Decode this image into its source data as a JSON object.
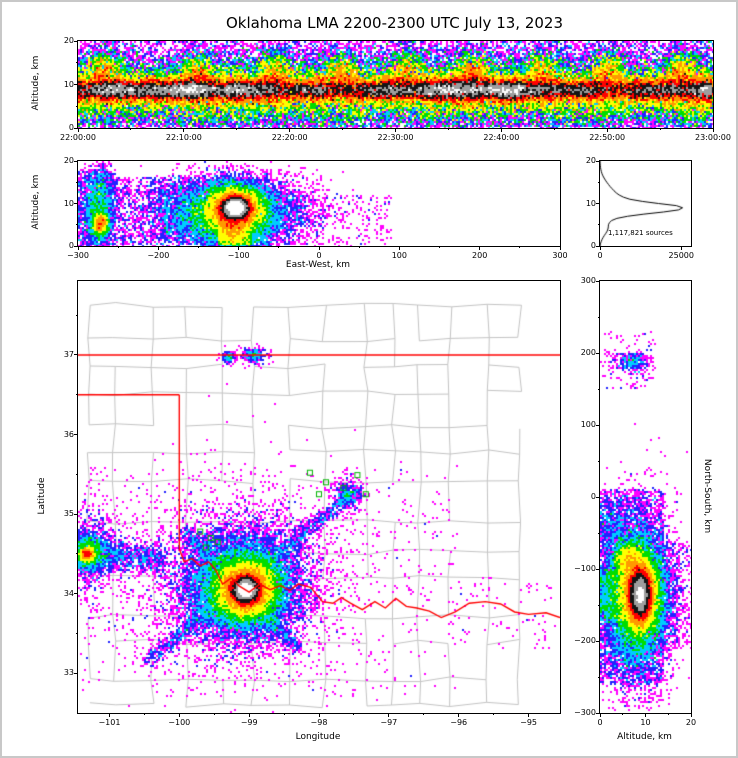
{
  "title": "Oklahoma LMA 2200-2300 UTC July 13, 2023",
  "colors": {
    "scale": [
      "#ff00ff",
      "#2222ff",
      "#00ccff",
      "#00dd00",
      "#ffff00",
      "#ff9900",
      "#ff0000",
      "#141414",
      "#9e9e9e",
      "#ffffff"
    ],
    "county": "#c2c2c2",
    "state_border": "#ff0000",
    "station": "#00b400",
    "histogram_line": "#000000"
  },
  "chart_data": [
    {
      "id": "time_height",
      "canvas": "time-height-canvas",
      "type": "heatmap",
      "xlabel": "",
      "ylabel": "Altitude, km",
      "xlim": [
        0,
        3600
      ],
      "ylim": [
        0,
        20
      ],
      "seed": 7,
      "xticks": {
        "values": [
          0,
          600,
          1200,
          1800,
          2400,
          3000,
          3600
        ],
        "labels": [
          "22:00:00",
          "22:10:00",
          "22:20:00",
          "22:30:00",
          "22:40:00",
          "22:50:00",
          "23:00:00"
        ]
      },
      "yticks": {
        "values": [
          0,
          10,
          20
        ],
        "labels": [
          "0",
          "10",
          "20"
        ]
      },
      "xminor": [
        300,
        900,
        1500,
        2100,
        2700,
        3300
      ],
      "yminor": [
        5,
        15
      ],
      "levels": [
        1,
        2,
        3,
        4,
        6,
        9,
        14,
        20,
        28,
        40
      ],
      "clusters": [
        {
          "kind": "band",
          "n": 68000,
          "x0": 0,
          "x1": 3600,
          "cy": 8.7,
          "sy": 1.25,
          "mod": 0.5
        },
        {
          "kind": "band",
          "n": 46000,
          "x0": 0,
          "x1": 3600,
          "cy": 8.6,
          "sy": 2.7,
          "mod": 0.4
        },
        {
          "kind": "band",
          "n": 26000,
          "x0": 0,
          "x1": 3600,
          "cy": 9.2,
          "sy": 5.2,
          "mod": 0.3
        },
        {
          "kind": "band",
          "n": 7000,
          "x0": 0,
          "x1": 3600,
          "cy": 3.0,
          "sy": 2.2,
          "mod": 0.5
        },
        {
          "kind": "uniform",
          "n": 7000,
          "x0": 0,
          "x1": 3600,
          "y0": 0,
          "y1": 20
        },
        {
          "kind": "gauss",
          "n": 1100,
          "cx": 150,
          "cy": 13.0,
          "sx": 55,
          "sy": 2.6
        },
        {
          "kind": "gauss",
          "n": 1100,
          "cx": 680,
          "cy": 12.5,
          "sx": 55,
          "sy": 2.6
        },
        {
          "kind": "gauss",
          "n": 1100,
          "cx": 1120,
          "cy": 13.5,
          "sx": 55,
          "sy": 2.6
        },
        {
          "kind": "gauss",
          "n": 1100,
          "cx": 1490,
          "cy": 12.8,
          "sx": 55,
          "sy": 2.6
        },
        {
          "kind": "gauss",
          "n": 1100,
          "cx": 1860,
          "cy": 13.2,
          "sx": 55,
          "sy": 2.6
        },
        {
          "kind": "gauss",
          "n": 1100,
          "cx": 2240,
          "cy": 12.6,
          "sx": 55,
          "sy": 2.6
        },
        {
          "kind": "gauss",
          "n": 1100,
          "cx": 2620,
          "cy": 13.4,
          "sx": 55,
          "sy": 2.6
        },
        {
          "kind": "gauss",
          "n": 1100,
          "cx": 3010,
          "cy": 12.9,
          "sx": 55,
          "sy": 2.6
        },
        {
          "kind": "gauss",
          "n": 1100,
          "cx": 3420,
          "cy": 13.1,
          "sx": 55,
          "sy": 2.6
        }
      ]
    },
    {
      "id": "east_west_altitude",
      "canvas": "east-west-canvas",
      "type": "heatmap",
      "xlabel": "East-West, km",
      "ylabel": "Altitude, km",
      "xlim": [
        -300,
        300
      ],
      "ylim": [
        0,
        20
      ],
      "seed": 11,
      "xticks": {
        "values": [
          -300,
          -200,
          -100,
          0,
          100,
          200,
          300
        ],
        "labels": [
          "−300",
          "−200",
          "−100",
          "0",
          "100",
          "200",
          "300"
        ]
      },
      "yticks": {
        "values": [
          0,
          10,
          20
        ],
        "labels": [
          "0",
          "10",
          "20"
        ]
      },
      "xminor": [
        -250,
        -150,
        -50,
        50,
        150,
        250
      ],
      "yminor": [
        5,
        15
      ],
      "levels": [
        1,
        2,
        4,
        8,
        15,
        28,
        50,
        90,
        160,
        280
      ],
      "clusters": [
        {
          "kind": "gauss",
          "n": 30000,
          "cx": -104,
          "cy": 9.0,
          "sx": 8,
          "sy": 1.2
        },
        {
          "kind": "gauss",
          "n": 15000,
          "cx": -105,
          "cy": 8.5,
          "sx": 18,
          "sy": 2.6
        },
        {
          "kind": "gauss",
          "n": 8000,
          "cx": -108,
          "cy": 8.0,
          "sx": 45,
          "sy": 4.2
        },
        {
          "kind": "uniform",
          "n": 2200,
          "x0": -125,
          "x1": -85,
          "y0": 0,
          "y1": 7
        },
        {
          "kind": "gauss",
          "n": 1200,
          "cx": -107,
          "cy": 3.0,
          "sx": 8,
          "sy": 2
        },
        {
          "kind": "gauss",
          "n": 1500,
          "cx": -272,
          "cy": 5.2,
          "sx": 5,
          "sy": 1.2
        },
        {
          "kind": "gauss",
          "n": 1800,
          "cx": -274,
          "cy": 9.0,
          "sx": 8,
          "sy": 5
        },
        {
          "kind": "uniform",
          "n": 160,
          "x0": -194,
          "x1": -186,
          "y0": 1,
          "y1": 13
        },
        {
          "kind": "uniform",
          "n": 150,
          "x0": -175,
          "x1": -168,
          "y0": 2,
          "y1": 14
        },
        {
          "kind": "uniform",
          "n": 140,
          "x0": -158,
          "x1": -151,
          "y0": 1,
          "y1": 12
        },
        {
          "kind": "uniform",
          "n": 120,
          "x0": -144,
          "x1": -138,
          "y0": 3,
          "y1": 10
        },
        {
          "kind": "uniform",
          "n": 2600,
          "x0": -300,
          "x1": -60,
          "y0": 0,
          "y1": 16
        },
        {
          "kind": "uniform",
          "n": 600,
          "x0": -300,
          "x1": -252,
          "y0": 0,
          "y1": 18
        },
        {
          "kind": "uniform",
          "n": 600,
          "x0": -150,
          "x1": -60,
          "y0": 0,
          "y1": 5
        },
        {
          "kind": "uniform",
          "n": 300,
          "x0": -60,
          "x1": 90,
          "y0": 0,
          "y1": 12
        }
      ]
    },
    {
      "id": "altitude_histogram",
      "canvas": "histogram-canvas",
      "type": "line",
      "xlabel": "",
      "ylabel": "",
      "annotation": "1,117,821 sources",
      "xlim": [
        0,
        28000
      ],
      "ylim": [
        0,
        20
      ],
      "xticks": {
        "values": [
          0,
          25000
        ],
        "labels": [
          "0",
          "25000"
        ]
      },
      "yticks": {
        "values": [
          0,
          10,
          20
        ],
        "labels": [
          "0",
          "10",
          "20"
        ]
      },
      "yminor": [
        5,
        15
      ],
      "curve": [
        [
          0,
          30
        ],
        [
          0.5,
          120
        ],
        [
          1,
          350
        ],
        [
          1.5,
          600
        ],
        [
          2,
          950
        ],
        [
          2.5,
          1350
        ],
        [
          3,
          1800
        ],
        [
          3.5,
          2200
        ],
        [
          4,
          2450
        ],
        [
          4.5,
          2550
        ],
        [
          5,
          2600
        ],
        [
          5.5,
          2900
        ],
        [
          6,
          3600
        ],
        [
          6.5,
          5200
        ],
        [
          7,
          8500
        ],
        [
          7.5,
          13500
        ],
        [
          8,
          19500
        ],
        [
          8.5,
          24200
        ],
        [
          9,
          25400
        ],
        [
          9.5,
          23500
        ],
        [
          10,
          18000
        ],
        [
          10.5,
          13000
        ],
        [
          11,
          9200
        ],
        [
          11.5,
          7200
        ],
        [
          12,
          5900
        ],
        [
          12.5,
          5000
        ],
        [
          13,
          4300
        ],
        [
          13.5,
          3700
        ],
        [
          14,
          3100
        ],
        [
          14.5,
          2600
        ],
        [
          15,
          2100
        ],
        [
          15.5,
          1650
        ],
        [
          16,
          1250
        ],
        [
          16.5,
          900
        ],
        [
          17,
          620
        ],
        [
          17.5,
          420
        ],
        [
          18,
          270
        ],
        [
          18.5,
          160
        ],
        [
          19,
          90
        ],
        [
          19.5,
          45
        ],
        [
          20,
          15
        ]
      ]
    },
    {
      "id": "map",
      "canvas": "map-canvas",
      "type": "heatmap",
      "xlabel": "Longitude",
      "ylabel": "Latitude",
      "xlim": [
        -101.45,
        -94.55
      ],
      "ylim": [
        32.5,
        37.93
      ],
      "seed": 23,
      "xticks": {
        "values": [
          -101,
          -100,
          -99,
          -98,
          -97,
          -96,
          -95
        ],
        "labels": [
          "−101",
          "−100",
          "−99",
          "−98",
          "−97",
          "−96",
          "−95"
        ]
      },
      "yticks": {
        "values": [
          33,
          34,
          35,
          36,
          37
        ],
        "labels": [
          "33",
          "34",
          "35",
          "36",
          "37"
        ]
      },
      "xminor": [
        -100.5,
        -99.5,
        -98.5,
        -97.5,
        -96.5,
        -95.5
      ],
      "yminor": [
        33.5,
        34.5,
        35.5,
        36.5,
        37.5
      ],
      "levels": [
        1,
        2,
        4,
        8,
        16,
        30,
        55,
        100,
        180,
        320
      ],
      "clusters": [
        {
          "kind": "gauss",
          "n": 30000,
          "cx": -99.05,
          "cy": 34.05,
          "sx": 0.09,
          "sy": 0.075
        },
        {
          "kind": "gauss",
          "n": 20000,
          "cx": -99.05,
          "cy": 34.05,
          "sx": 0.2,
          "sy": 0.17
        },
        {
          "kind": "gauss",
          "n": 12000,
          "cx": -99.1,
          "cy": 34.1,
          "sx": 0.4,
          "sy": 0.33
        },
        {
          "kind": "line",
          "n": 1600,
          "x0": -100.45,
          "y0": 33.15,
          "x1": -97.45,
          "y1": 35.3,
          "sx": 0.06,
          "sy": 0.05
        },
        {
          "kind": "line",
          "n": 1000,
          "x0": -99.95,
          "y0": 34.8,
          "x1": -98.3,
          "y1": 33.3,
          "sx": 0.05,
          "sy": 0.05
        },
        {
          "kind": "line",
          "n": 1100,
          "x0": -101.45,
          "y0": 34.5,
          "x1": -100.25,
          "y1": 34.45,
          "sx": 0.05,
          "sy": 0.1
        },
        {
          "kind": "gauss",
          "n": 1300,
          "cx": -101.32,
          "cy": 34.5,
          "sx": 0.05,
          "sy": 0.045
        },
        {
          "kind": "gauss",
          "n": 1500,
          "cx": -101.3,
          "cy": 34.52,
          "sx": 0.13,
          "sy": 0.11
        },
        {
          "kind": "gauss",
          "n": 900,
          "cx": -101.28,
          "cy": 34.55,
          "sx": 0.2,
          "sy": 0.28
        },
        {
          "kind": "gauss",
          "n": 260,
          "cx": -98.93,
          "cy": 37.0,
          "sx": 0.09,
          "sy": 0.05
        },
        {
          "kind": "gauss",
          "n": 130,
          "cx": -99.3,
          "cy": 36.97,
          "sx": 0.05,
          "sy": 0.04
        },
        {
          "kind": "gauss",
          "n": 2500,
          "cx": -99.2,
          "cy": 34.2,
          "sx": 0.8,
          "sy": 0.6
        },
        {
          "kind": "uniform",
          "n": 700,
          "x0": -101.4,
          "x1": -96,
          "y0": 32.7,
          "y1": 35.6
        },
        {
          "kind": "gauss",
          "n": 350,
          "cx": -97.6,
          "cy": 35.25,
          "sx": 0.12,
          "sy": 0.1
        },
        {
          "kind": "uniform",
          "n": 80,
          "x0": -96,
          "x1": -94.6,
          "y0": 33.3,
          "y1": 34.2
        }
      ],
      "counties": {
        "seed": 101,
        "lon_step": 0.45,
        "lat_step": 0.42,
        "jitter": 0.07,
        "drop": 0.12
      },
      "borders": [
        [
          [
            -101.45,
            37
          ],
          [
            -94.55,
            37
          ]
        ],
        [
          [
            -101.45,
            36.5
          ],
          [
            -100,
            36.5
          ]
        ],
        [
          [
            -100,
            36.5
          ],
          [
            -100,
            34.56
          ]
        ],
        [
          [
            -100.0,
            34.56
          ],
          [
            -99.93,
            34.4
          ],
          [
            -99.82,
            34.44
          ],
          [
            -99.7,
            34.35
          ],
          [
            -99.58,
            34.4
          ],
          [
            -99.48,
            34.3
          ],
          [
            -99.38,
            34.12
          ],
          [
            -99.25,
            34.2
          ],
          [
            -99.15,
            34.1
          ],
          [
            -99.0,
            34.02
          ],
          [
            -98.85,
            34.12
          ],
          [
            -98.7,
            34.05
          ],
          [
            -98.55,
            34.1
          ],
          [
            -98.42,
            34.04
          ],
          [
            -98.3,
            34.12
          ],
          [
            -98.12,
            34.08
          ],
          [
            -97.95,
            33.9
          ],
          [
            -97.8,
            33.88
          ],
          [
            -97.68,
            33.95
          ],
          [
            -97.55,
            33.88
          ],
          [
            -97.38,
            33.8
          ],
          [
            -97.2,
            33.9
          ],
          [
            -97.05,
            33.82
          ],
          [
            -96.9,
            33.94
          ],
          [
            -96.75,
            33.84
          ],
          [
            -96.6,
            33.82
          ],
          [
            -96.42,
            33.78
          ],
          [
            -96.25,
            33.7
          ],
          [
            -96.05,
            33.77
          ],
          [
            -95.85,
            33.88
          ],
          [
            -95.62,
            33.9
          ],
          [
            -95.4,
            33.87
          ],
          [
            -95.2,
            33.77
          ],
          [
            -95.0,
            33.74
          ],
          [
            -94.75,
            33.76
          ],
          [
            -94.55,
            33.7
          ]
        ]
      ],
      "stations": {
        "size": 5,
        "coords": [
          [
            -98.13,
            35.52
          ],
          [
            -97.9,
            35.4
          ],
          [
            -97.65,
            35.33
          ],
          [
            -97.45,
            35.49
          ],
          [
            -97.33,
            35.25
          ],
          [
            -98.0,
            35.25
          ],
          [
            -99.7,
            34.78
          ],
          [
            -99.55,
            34.7
          ],
          [
            -99.62,
            34.58
          ],
          [
            -99.45,
            34.65
          ]
        ]
      }
    },
    {
      "id": "north_south_altitude",
      "canvas": "north-south-canvas",
      "type": "heatmap",
      "xlabel": "Altitude, km",
      "ylabel": "North-South, km",
      "xlim": [
        0,
        20
      ],
      "ylim": [
        -300,
        300
      ],
      "seed": 31,
      "xticks": {
        "values": [
          0,
          10,
          20
        ],
        "labels": [
          "0",
          "10",
          "20"
        ]
      },
      "yticks": {
        "values": [
          -300,
          -200,
          -100,
          0,
          100,
          200,
          300
        ],
        "labels": [
          "−300",
          "−200",
          "−100",
          "0",
          "100",
          "200",
          "300"
        ]
      },
      "xminor": [
        5,
        15
      ],
      "yminor": [
        -250,
        -150,
        -50,
        50,
        150,
        250
      ],
      "levels": [
        1,
        2,
        4,
        8,
        16,
        30,
        55,
        100,
        170,
        280
      ],
      "clusters": [
        {
          "kind": "gauss",
          "n": 34000,
          "cx": 8.8,
          "cy": -135,
          "sx": 1.25,
          "sy": 18
        },
        {
          "kind": "gauss",
          "n": 14000,
          "cx": 8.5,
          "cy": -135,
          "sx": 2.6,
          "sy": 35
        },
        {
          "kind": "gauss",
          "n": 7000,
          "cx": 8.0,
          "cy": -140,
          "sx": 4.2,
          "sy": 60
        },
        {
          "kind": "uniform",
          "n": 1500,
          "x0": 0,
          "x1": 7,
          "y0": -170,
          "y1": -100
        },
        {
          "kind": "gauss",
          "n": 2200,
          "cx": 6.0,
          "cy": -85,
          "sx": 1.6,
          "sy": 12
        },
        {
          "kind": "uniform",
          "n": 2600,
          "x0": 0,
          "x1": 14,
          "y0": -260,
          "y1": 10
        },
        {
          "kind": "gauss",
          "n": 320,
          "cx": 7.0,
          "cy": 187,
          "sx": 2,
          "sy": 7
        },
        {
          "kind": "uniform",
          "n": 120,
          "x0": 0,
          "x1": 12,
          "y0": 150,
          "y1": 230
        },
        {
          "kind": "uniform",
          "n": 250,
          "x0": 14,
          "x1": 20,
          "y0": -210,
          "y1": -60
        },
        {
          "kind": "uniform",
          "n": 300,
          "x0": 0,
          "x1": 5,
          "y0": -60,
          "y1": -5
        }
      ]
    }
  ]
}
